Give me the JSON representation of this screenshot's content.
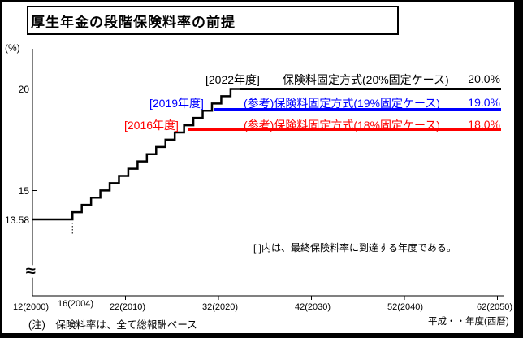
{
  "chart_data": {
    "type": "line",
    "title": "厚生年金の段階保険料率の前提",
    "y_unit_label": "(%)",
    "x_axis_label": "平成・・年度(西暦)",
    "footnote": "(注)　保険料率は、全て総報酬ベース",
    "annotation": "[ ]内は、最終保険料率に到達する年度である。",
    "xlim_years": [
      2000,
      2050
    ],
    "ylim_pct": [
      13.58,
      20.0
    ],
    "y_axis_break": true,
    "grid": false,
    "x_ticks": [
      {
        "year": 2000,
        "label": "12(2000)",
        "tick": false
      },
      {
        "year": 2004,
        "label": "16(2004)",
        "tick": false
      },
      {
        "year": 2010,
        "label": "22(2010)",
        "tick": true
      },
      {
        "year": 2020,
        "label": "32(2020)",
        "tick": true
      },
      {
        "year": 2030,
        "label": "42(2030)",
        "tick": true
      },
      {
        "year": 2040,
        "label": "52(2040)",
        "tick": true
      },
      {
        "year": 2050,
        "label": "62(2050)",
        "tick": true
      }
    ],
    "y_ticks": [
      {
        "value": 20,
        "label": "20",
        "tick": true
      },
      {
        "value": 15,
        "label": "15",
        "tick": true
      },
      {
        "value": 13.58,
        "label": "13.58",
        "tick": false
      }
    ],
    "step_schedule": {
      "start_year": 2000,
      "start_rate_pct": 13.58,
      "first_increase_year": 2004,
      "annual_increase_pct": 0.357,
      "num_steps": 18,
      "final_rate_pct": 20.0,
      "final_year": 2022,
      "color": "#000000"
    },
    "series": [
      {
        "bracket_label": "[2022年度]",
        "name": "保険料固定方式(20%固定ケース)",
        "rate_label": "20.0%",
        "final_rate": 20.0,
        "final_year": 2022,
        "color": "#000000"
      },
      {
        "bracket_label": "[2019年度]",
        "name": "(参考)保険料固定方式(19%固定ケース)",
        "rate_label": "19.0%",
        "final_rate": 19.0,
        "final_year": 2019,
        "color": "#0000ff"
      },
      {
        "bracket_label": "[2016年度]",
        "name": "(参考)保険料固定方式(18%固定ケース)",
        "rate_label": "18.0%",
        "final_rate": 18.0,
        "final_year": 2016,
        "color": "#ff0000"
      }
    ]
  }
}
